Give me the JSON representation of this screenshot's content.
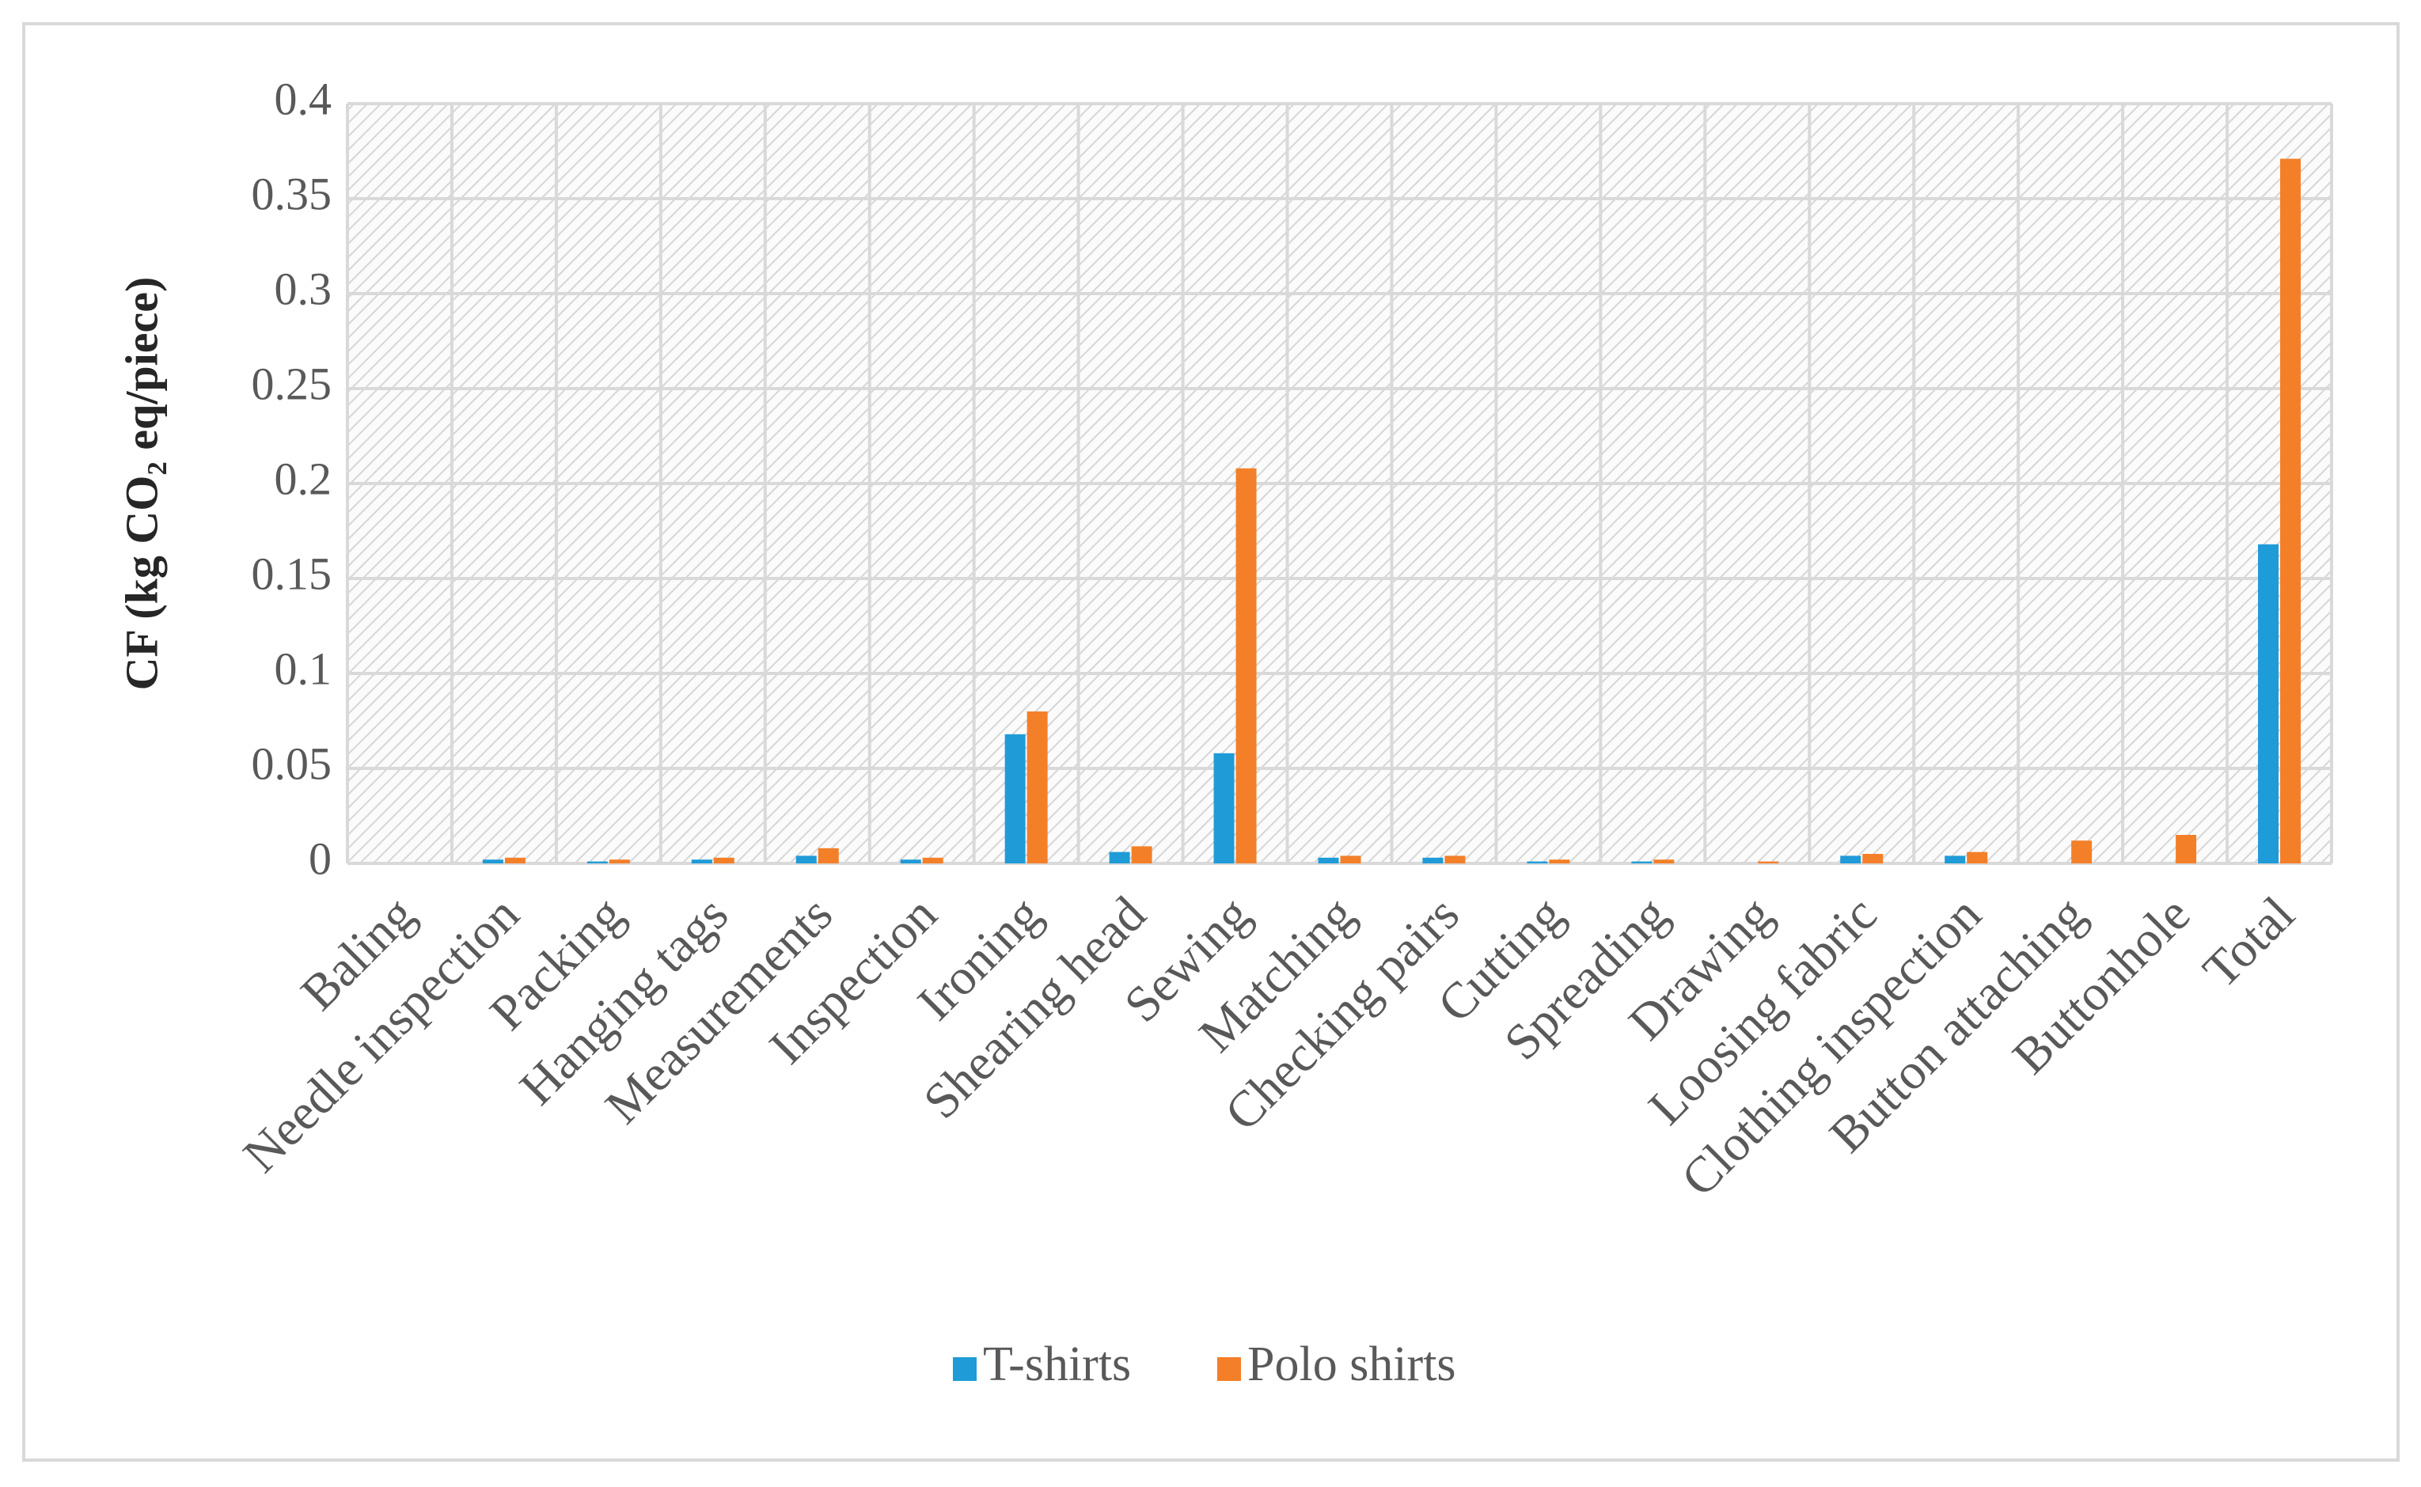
{
  "chart_data": {
    "type": "bar",
    "y_label": "CF (kg CO₂ eq/piece)",
    "categories": [
      "Baling",
      "Needle inspection",
      "Packing",
      "Hanging tags",
      "Measurements",
      "Inspection",
      "Ironing",
      "Shearing head",
      "Sewing",
      "Matching",
      "Checking pairs",
      "Cutting",
      "Spreading",
      "Drawing",
      "Loosing fabric",
      "Clothing inspection",
      "Button attaching",
      "Buttonhole",
      "Total"
    ],
    "series": [
      {
        "name": "T-shirts",
        "color": "#1f9bd8",
        "values": [
          0,
          0.002,
          0.001,
          0.002,
          0.004,
          0.002,
          0.068,
          0.006,
          0.058,
          0.003,
          0.003,
          0.001,
          0.001,
          0,
          0.004,
          0.004,
          0,
          0,
          0.168
        ]
      },
      {
        "name": "Polo shirts",
        "color": "#f47f29",
        "values": [
          0,
          0.003,
          0.002,
          0.003,
          0.008,
          0.003,
          0.08,
          0.009,
          0.208,
          0.004,
          0.004,
          0.002,
          0.002,
          0.001,
          0.005,
          0.006,
          0.012,
          0.015,
          0.371
        ]
      }
    ],
    "ylim": [
      0,
      0.4
    ],
    "yticks": [
      0,
      0.05,
      0.1,
      0.15,
      0.2,
      0.25,
      0.3,
      0.35,
      0.4
    ],
    "grid": true,
    "legend": "bottom"
  }
}
